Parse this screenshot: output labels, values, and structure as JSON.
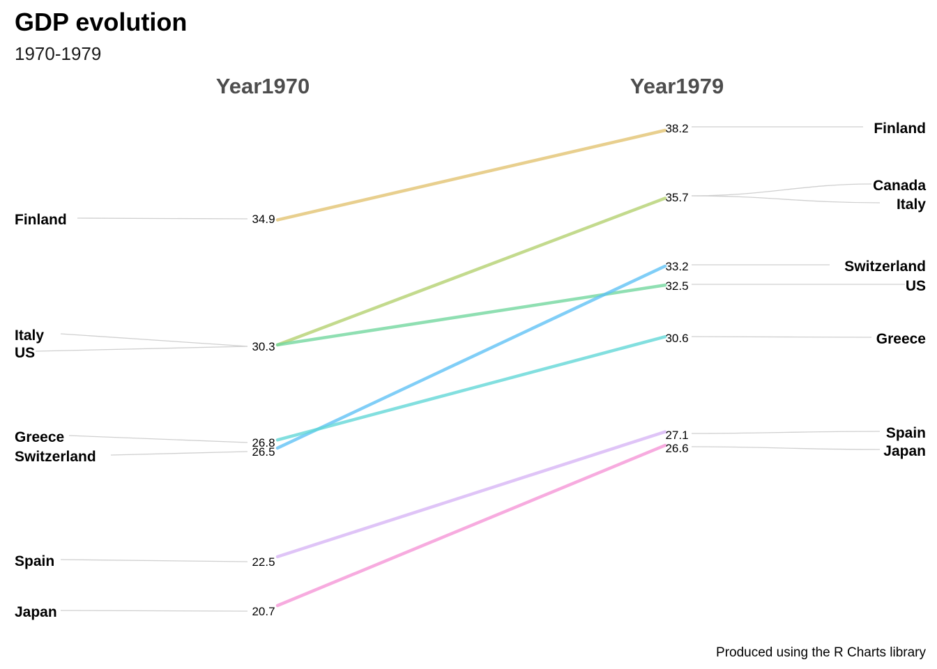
{
  "chart_data": {
    "type": "line",
    "subtype": "slope",
    "title": "GDP evolution",
    "subtitle": "1970-1979",
    "caption": "Produced using the R Charts library",
    "x": [
      "Year1970",
      "Year1979"
    ],
    "ylim": [
      19.5,
      39.5
    ],
    "legend": "none",
    "grid": false,
    "series": [
      {
        "name": "Canada",
        "values": [
          26.8,
          35.7
        ],
        "color": "#e1c16e",
        "labels": [
          false,
          true
        ]
      },
      {
        "name": "Finland",
        "values": [
          34.9,
          38.2
        ],
        "color": "#e1c16e",
        "labels": [
          true,
          true
        ]
      },
      {
        "name": "Italy",
        "values": [
          30.3,
          35.7
        ],
        "color": "#b2cf6d",
        "labels": [
          true,
          true
        ]
      },
      {
        "name": "US",
        "values": [
          30.3,
          32.5
        ],
        "color": "#6fd69c",
        "labels": [
          true,
          true
        ]
      },
      {
        "name": "Switzerland",
        "values": [
          26.5,
          33.2
        ],
        "color": "#5cc0f5",
        "labels": [
          true,
          true
        ]
      },
      {
        "name": "Greece",
        "values": [
          26.8,
          30.6
        ],
        "color": "#5fd6d6",
        "labels": [
          true,
          true
        ]
      },
      {
        "name": "Spain",
        "values": [
          22.5,
          27.1
        ],
        "color": "#d6b4f5",
        "labels": [
          true,
          true
        ]
      },
      {
        "name": "Japan",
        "values": [
          20.7,
          26.6
        ],
        "color": "#f593d6",
        "labels": [
          true,
          true
        ]
      }
    ],
    "value_labels": {
      "Year1970": [
        "34.9",
        "30.3",
        "26.8",
        "26.5",
        "22.5",
        "20.7"
      ],
      "Year1979": [
        "38.2",
        "35.7",
        "33.2",
        "32.5",
        "30.6",
        "27.1",
        "26.6"
      ]
    }
  }
}
